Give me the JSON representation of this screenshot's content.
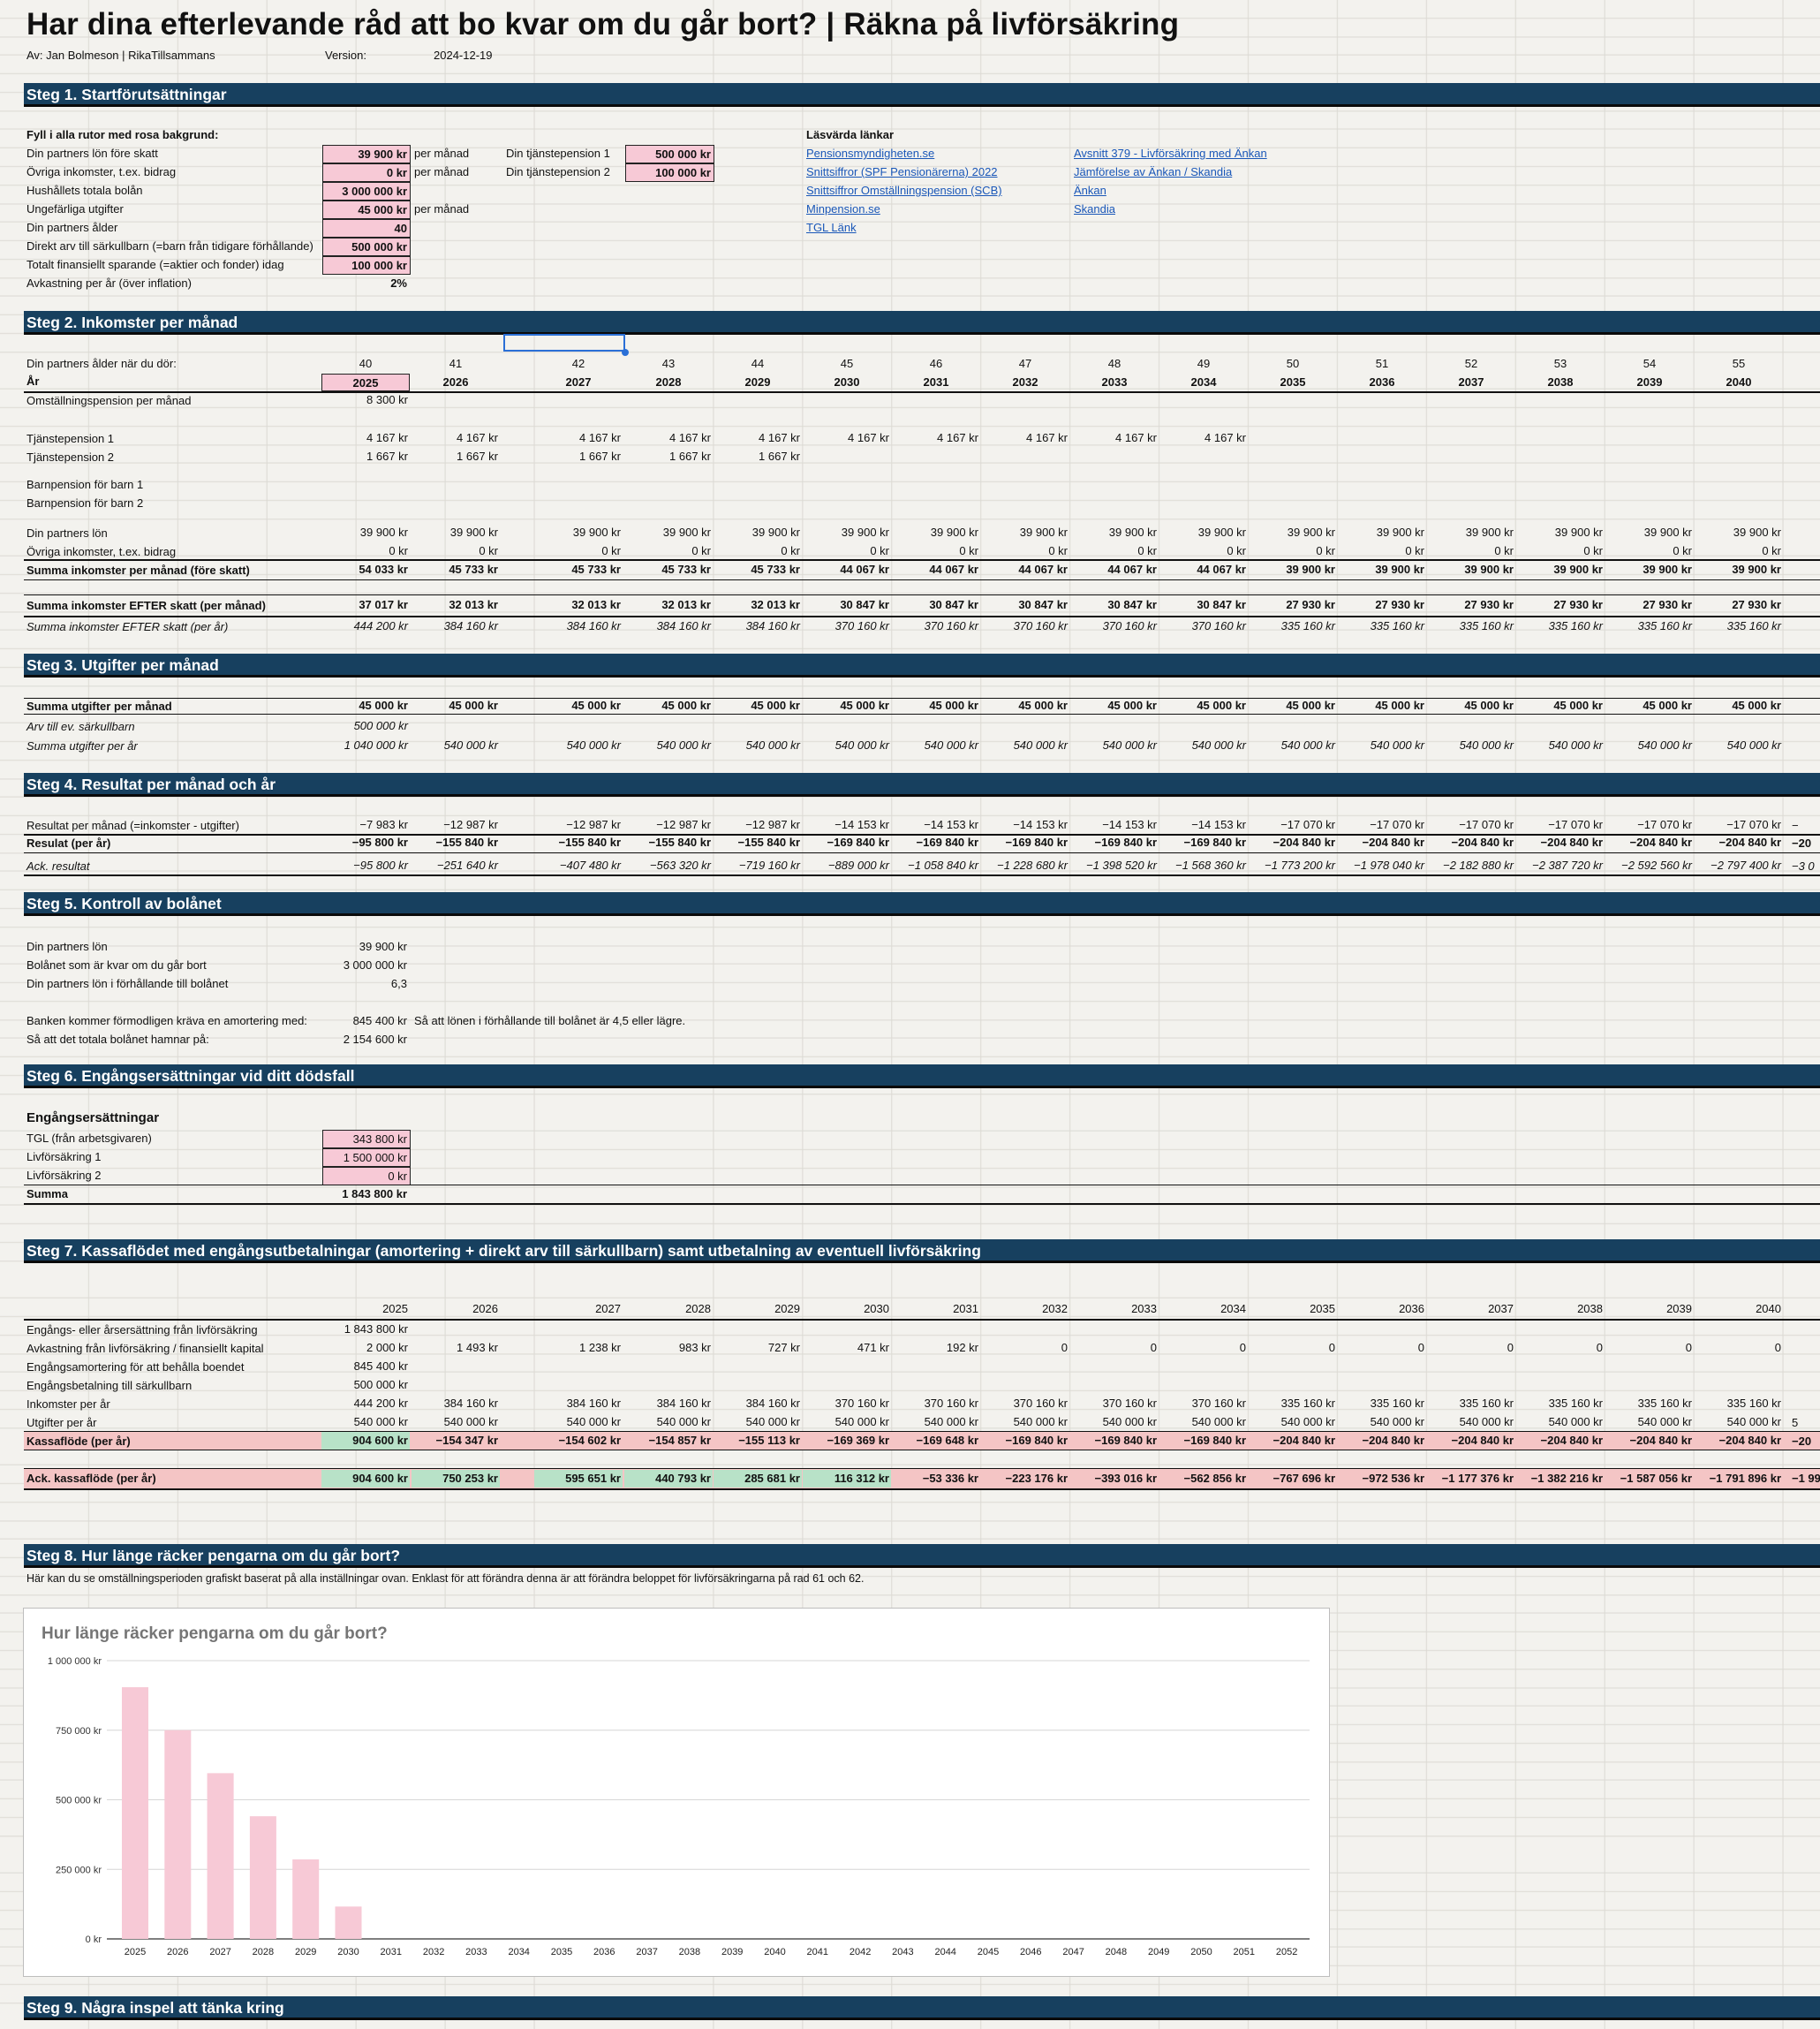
{
  "header": {
    "title": "Har dina efterlevande råd att bo kvar om du går bort? | Räkna på livförsäkring",
    "author": "Av: Jan Bolmeson | RikaTillsammans",
    "version_label": "Version:",
    "version_value": "2024-12-19"
  },
  "colors": {
    "band": "#17405f",
    "pink": "#f7c9d6",
    "green": "#b8e2c8",
    "red": "#f4c5c5",
    "bar": "#f7c9d6"
  },
  "step1": {
    "title": "Steg 1. Startförutsättningar",
    "instruction": "Fyll i alla rutor med rosa bakgrund:",
    "rows": [
      {
        "label": "Din partners lön före skatt",
        "value": "39 900 kr",
        "unit": "per månad"
      },
      {
        "label": "Övriga inkomster, t.ex. bidrag",
        "value": "0 kr",
        "unit": "per månad"
      },
      {
        "label": "Hushållets totala bolån",
        "value": "3 000 000 kr",
        "unit": ""
      },
      {
        "label": "Ungefärliga utgifter",
        "value": "45 000 kr",
        "unit": "per månad"
      },
      {
        "label": "Din partners ålder",
        "value": "40",
        "unit": ""
      },
      {
        "label": "Direkt arv till särkullbarn (=barn från tidigare förhållande)",
        "value": "500 000 kr",
        "unit": ""
      },
      {
        "label": "Totalt finansiellt sparande (=aktier och fonder) idag",
        "value": "100 000 kr",
        "unit": ""
      },
      {
        "label": "Avkastning per år (över inflation)",
        "value": "2%",
        "unit": ""
      }
    ],
    "pension": [
      {
        "label": "Din tjänstepension 1",
        "value": "500 000 kr"
      },
      {
        "label": "Din tjänstepension 2",
        "value": "100 000 kr"
      }
    ],
    "links_title": "Läsvärda länkar",
    "links_left": [
      "Pensionsmyndigheten.se",
      "Snittsiffror (SPF Pensionärerna) 2022",
      "Snittsiffror Omställningspension (SCB)",
      "Minpension.se",
      "TGL Länk"
    ],
    "links_right": [
      "Avsnitt 379 - Livförsäkring med Änkan",
      "Jämförelse av Änkan / Skandia",
      "Änkan",
      "Skandia"
    ]
  },
  "step2": {
    "title": "Steg 2. Inkomster per månad",
    "age_label": "Din partners ålder när du dör:",
    "year_label": "År",
    "ages": [
      "40",
      "41",
      "42",
      "43",
      "44",
      "45",
      "46",
      "47",
      "48",
      "49",
      "50",
      "51",
      "52",
      "53",
      "54",
      "55"
    ],
    "years": [
      "2025",
      "2026",
      "2027",
      "2028",
      "2029",
      "2030",
      "2031",
      "2032",
      "2033",
      "2034",
      "2035",
      "2036",
      "2037",
      "2038",
      "2039",
      "2040"
    ],
    "omst_label": "Omställningspension per månad",
    "omst_value": "8 300 kr",
    "tp1_label": "Tjänstepension 1",
    "tp1": [
      "4 167 kr",
      "4 167 kr",
      "4 167 kr",
      "4 167 kr",
      "4 167 kr",
      "4 167 kr",
      "4 167 kr",
      "4 167 kr",
      "4 167 kr",
      "4 167 kr"
    ],
    "tp2_label": "Tjänstepension 2",
    "tp2": [
      "1 667 kr",
      "1 667 kr",
      "1 667 kr",
      "1 667 kr",
      "1 667 kr"
    ],
    "barn1_label": "Barnpension för barn 1",
    "barn2_label": "Barnpension för barn 2",
    "lon_label": "Din partners lön",
    "lon": [
      "39 900 kr",
      "39 900 kr",
      "39 900 kr",
      "39 900 kr",
      "39 900 kr",
      "39 900 kr",
      "39 900 kr",
      "39 900 kr",
      "39 900 kr",
      "39 900 kr",
      "39 900 kr",
      "39 900 kr",
      "39 900 kr",
      "39 900 kr",
      "39 900 kr",
      "39 900 kr"
    ],
    "ovr_label": "Övriga inkomster, t.ex. bidrag",
    "ovr": [
      "0 kr",
      "0 kr",
      "0 kr",
      "0 kr",
      "0 kr",
      "0 kr",
      "0 kr",
      "0 kr",
      "0 kr",
      "0 kr",
      "0 kr",
      "0 kr",
      "0 kr",
      "0 kr",
      "0 kr",
      "0 kr"
    ],
    "sum_label": "Summa inkomster per månad (före skatt)",
    "sum": [
      "54 033 kr",
      "45 733 kr",
      "45 733 kr",
      "45 733 kr",
      "45 733 kr",
      "44 067 kr",
      "44 067 kr",
      "44 067 kr",
      "44 067 kr",
      "44 067 kr",
      "39 900 kr",
      "39 900 kr",
      "39 900 kr",
      "39 900 kr",
      "39 900 kr",
      "39 900 kr"
    ],
    "after_label": "Summa inkomster EFTER skatt (per månad)",
    "after": [
      "37 017 kr",
      "32 013 kr",
      "32 013 kr",
      "32 013 kr",
      "32 013 kr",
      "30 847 kr",
      "30 847 kr",
      "30 847 kr",
      "30 847 kr",
      "30 847 kr",
      "27 930 kr",
      "27 930 kr",
      "27 930 kr",
      "27 930 kr",
      "27 930 kr",
      "27 930 kr"
    ],
    "year_sum_label": "Summa inkomster EFTER skatt (per år)",
    "year_sum": [
      "444 200 kr",
      "384 160 kr",
      "384 160 kr",
      "384 160 kr",
      "384 160 kr",
      "370 160 kr",
      "370 160 kr",
      "370 160 kr",
      "370 160 kr",
      "370 160 kr",
      "335 160 kr",
      "335 160 kr",
      "335 160 kr",
      "335 160 kr",
      "335 160 kr",
      "335 160 kr"
    ]
  },
  "step3": {
    "title": "Steg 3. Utgifter per månad",
    "sum_label": "Summa utgifter per månad",
    "sum": [
      "45 000 kr",
      "45 000 kr",
      "45 000 kr",
      "45 000 kr",
      "45 000 kr",
      "45 000 kr",
      "45 000 kr",
      "45 000 kr",
      "45 000 kr",
      "45 000 kr",
      "45 000 kr",
      "45 000 kr",
      "45 000 kr",
      "45 000 kr",
      "45 000 kr",
      "45 000 kr"
    ],
    "arv_label": "Arv till ev. särkullbarn",
    "arv_value": "500 000 kr",
    "year_label": "Summa utgifter per år",
    "year": [
      "1 040 000 kr",
      "540 000 kr",
      "540 000 kr",
      "540 000 kr",
      "540 000 kr",
      "540 000 kr",
      "540 000 kr",
      "540 000 kr",
      "540 000 kr",
      "540 000 kr",
      "540 000 kr",
      "540 000 kr",
      "540 000 kr",
      "540 000 kr",
      "540 000 kr",
      "540 000 kr"
    ]
  },
  "step4": {
    "title": "Steg 4. Resultat per månad och år",
    "month_label": "Resultat per månad (=inkomster - utgifter)",
    "month": [
      "−7 983 kr",
      "−12 987 kr",
      "−12 987 kr",
      "−12 987 kr",
      "−12 987 kr",
      "−14 153 kr",
      "−14 153 kr",
      "−14 153 kr",
      "−14 153 kr",
      "−14 153 kr",
      "−17 070 kr",
      "−17 070 kr",
      "−17 070 kr",
      "−17 070 kr",
      "−17 070 kr",
      "−17 070 kr"
    ],
    "year_label": "Resulat (per år)",
    "year": [
      "−95 800 kr",
      "−155 840 kr",
      "−155 840 kr",
      "−155 840 kr",
      "−155 840 kr",
      "−169 840 kr",
      "−169 840 kr",
      "−169 840 kr",
      "−169 840 kr",
      "−169 840 kr",
      "−204 840 kr",
      "−204 840 kr",
      "−204 840 kr",
      "−204 840 kr",
      "−204 840 kr",
      "−204 840 kr"
    ],
    "ack_label": "Ack. resultat",
    "ack": [
      "−95 800 kr",
      "−251 640 kr",
      "−407 480 kr",
      "−563 320 kr",
      "−719 160 kr",
      "−889 000 kr",
      "−1 058 840 kr",
      "−1 228 680 kr",
      "−1 398 520 kr",
      "−1 568 360 kr",
      "−1 773 200 kr",
      "−1 978 040 kr",
      "−2 182 880 kr",
      "−2 387 720 kr",
      "−2 592 560 kr",
      "−2 797 400 kr"
    ],
    "overflow": [
      "−",
      "−20",
      "−3 0"
    ]
  },
  "step5": {
    "title": "Steg 5. Kontroll av bolånet",
    "rows": [
      {
        "label": "Din partners lön",
        "value": "39 900 kr"
      },
      {
        "label": "Bolånet som är kvar om du går bort",
        "value": "3 000 000 kr"
      },
      {
        "label": "Din partners lön i förhållande till bolånet",
        "value": "6,3"
      },
      {
        "label": "Banken kommer förmodligen kräva en amortering med:",
        "value": "845 400 kr"
      },
      {
        "label": "Så att det totala bolånet hamnar på:",
        "value": "2 154 600 kr"
      }
    ],
    "note": "Så att lönen i förhållande till bolånet är 4,5 eller lägre."
  },
  "step6": {
    "title": "Steg 6. Engångsersättningar vid ditt dödsfall",
    "subtitle": "Engångsersättningar",
    "rows": [
      {
        "label": "TGL (från arbetsgivaren)",
        "value": "343 800 kr"
      },
      {
        "label": "Livförsäkring 1",
        "value": "1 500 000 kr"
      },
      {
        "label": "Livförsäkring 2",
        "value": "0 kr"
      }
    ],
    "sum_label": "Summa",
    "sum_value": "1 843 800 kr"
  },
  "step7": {
    "title": "Steg 7. Kassaflödet med engångsutbetalningar (amortering + direkt arv till särkullbarn) samt utbetalning av eventuell livförsäkring",
    "years": [
      "2025",
      "2026",
      "2027",
      "2028",
      "2029",
      "2030",
      "2031",
      "2032",
      "2033",
      "2034",
      "2035",
      "2036",
      "2037",
      "2038",
      "2039",
      "2040"
    ],
    "eng_label": "Engångs- eller årsersättning från livförsäkring",
    "eng_value": "1 843 800 kr",
    "avk_label": "Avkastning från livförsäkring / finansiellt kapital",
    "avk": [
      "2 000 kr",
      "1 493 kr",
      "1 238 kr",
      "983 kr",
      "727 kr",
      "471 kr",
      "192 kr",
      "0",
      "0",
      "0",
      "0",
      "0",
      "0",
      "0",
      "0",
      "0"
    ],
    "amort_label": "Engångsamortering för att behålla boendet",
    "amort_value": "845 400 kr",
    "sark_label": "Engångsbetalning till särkullbarn",
    "sark_value": "500 000 kr",
    "ink_label": "Inkomster per år",
    "ink": [
      "444 200 kr",
      "384 160 kr",
      "384 160 kr",
      "384 160 kr",
      "384 160 kr",
      "370 160 kr",
      "370 160 kr",
      "370 160 kr",
      "370 160 kr",
      "370 160 kr",
      "335 160 kr",
      "335 160 kr",
      "335 160 kr",
      "335 160 kr",
      "335 160 kr",
      "335 160 kr"
    ],
    "utg_label": "Utgifter per år",
    "utg": [
      "540 000 kr",
      "540 000 kr",
      "540 000 kr",
      "540 000 kr",
      "540 000 kr",
      "540 000 kr",
      "540 000 kr",
      "540 000 kr",
      "540 000 kr",
      "540 000 kr",
      "540 000 kr",
      "540 000 kr",
      "540 000 kr",
      "540 000 kr",
      "540 000 kr",
      "540 000 kr"
    ],
    "kf_label": "Kassaflöde (per år)",
    "kf": [
      "904 600 kr",
      "−154 347 kr",
      "−154 602 kr",
      "−154 857 kr",
      "−155 113 kr",
      "−169 369 kr",
      "−169 648 kr",
      "−169 840 kr",
      "−169 840 kr",
      "−169 840 kr",
      "−204 840 kr",
      "−204 840 kr",
      "−204 840 kr",
      "−204 840 kr",
      "−204 840 kr",
      "−204 840 kr"
    ],
    "ack_label": "Ack. kassaflöde (per år)",
    "ack": [
      "904 600 kr",
      "750 253 kr",
      "595 651 kr",
      "440 793 kr",
      "285 681 kr",
      "116 312 kr",
      "−53 336 kr",
      "−223 176 kr",
      "−393 016 kr",
      "−562 856 kr",
      "−767 696 kr",
      "−972 536 kr",
      "−1 177 376 kr",
      "−1 382 216 kr",
      "−1 587 056 kr",
      "−1 791 896 kr"
    ],
    "overflow": [
      "5",
      "−20",
      "−1 99"
    ]
  },
  "step8": {
    "title": "Steg 8. Hur länge räcker pengarna om du går bort?",
    "description": "Här kan du se omställningsperioden grafiskt baserat på alla inställningar ovan. Enklast för att förändra denna är att förändra beloppet för livförsäkringarna på rad 61 och 62."
  },
  "step9": {
    "title": "Steg 9. Några inspel att tänka kring"
  },
  "chart_data": {
    "type": "bar",
    "title": "Hur länge räcker pengarna om du går bort?",
    "categories": [
      "2025",
      "2026",
      "2027",
      "2028",
      "2029",
      "2030",
      "2031",
      "2032",
      "2033",
      "2034",
      "2035",
      "2036",
      "2037",
      "2038",
      "2039",
      "2040",
      "2041",
      "2042",
      "2043",
      "2044",
      "2045",
      "2046",
      "2047",
      "2048",
      "2049",
      "2050",
      "2051",
      "2052"
    ],
    "values": [
      904600,
      750253,
      595651,
      440793,
      285681,
      116312,
      0,
      0,
      0,
      0,
      0,
      0,
      0,
      0,
      0,
      0,
      0,
      0,
      0,
      0,
      0,
      0,
      0,
      0,
      0,
      0,
      0,
      0
    ],
    "ylim": [
      0,
      1000000
    ],
    "yticks": [
      "0 kr",
      "250 000 kr",
      "500 000 kr",
      "750 000 kr",
      "1 000 000 kr"
    ],
    "ytick_values": [
      0,
      250000,
      500000,
      750000,
      1000000
    ],
    "grid": true,
    "legend": "none"
  }
}
